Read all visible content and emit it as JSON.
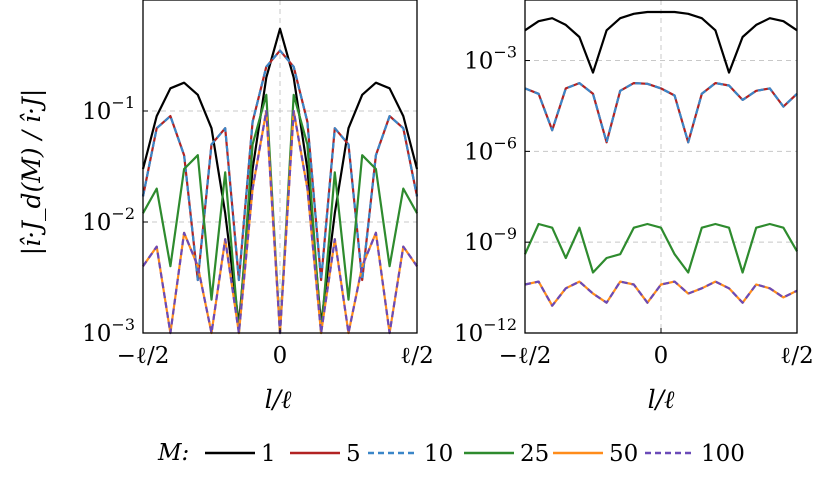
{
  "chart_data": [
    {
      "type": "line",
      "panel": "left",
      "xlabel": "l/ℓ",
      "ylabel": "|î·J_d(M) / î·J|",
      "y_scale": "log",
      "ylim": [
        0.001,
        1
      ],
      "xlim": [
        -0.5,
        0.5
      ],
      "x_ticks": [
        -0.5,
        0,
        0.5
      ],
      "x_tick_labels": [
        "−ℓ/2",
        "0",
        "ℓ/2"
      ],
      "y_ticks": [
        0.001,
        0.01,
        0.1
      ],
      "y_tick_labels": [
        {
          "base": "10",
          "exp": "−3"
        },
        {
          "base": "10",
          "exp": "−2"
        },
        {
          "base": "10",
          "exp": "−1"
        }
      ],
      "grid": true,
      "x": [
        -0.5,
        -0.45,
        -0.4,
        -0.35,
        -0.3,
        -0.25,
        -0.2,
        -0.15,
        -0.1,
        -0.05,
        0,
        0.05,
        0.1,
        0.15,
        0.2,
        0.25,
        0.3,
        0.35,
        0.4,
        0.45,
        0.5
      ],
      "series": [
        {
          "name": "1",
          "values": [
            0.03,
            0.09,
            0.16,
            0.18,
            0.14,
            0.07,
            0.012,
            0.0012,
            0.03,
            0.2,
            0.55,
            0.2,
            0.03,
            0.0012,
            0.012,
            0.07,
            0.14,
            0.18,
            0.16,
            0.09,
            0.03
          ]
        },
        {
          "name": "5",
          "values": [
            0.017,
            0.07,
            0.09,
            0.04,
            0.003,
            0.05,
            0.07,
            0.003,
            0.08,
            0.25,
            0.35,
            0.25,
            0.08,
            0.003,
            0.07,
            0.05,
            0.003,
            0.04,
            0.09,
            0.07,
            0.017
          ]
        },
        {
          "name": "10",
          "values": [
            0.017,
            0.07,
            0.09,
            0.04,
            0.003,
            0.05,
            0.07,
            0.003,
            0.08,
            0.25,
            0.35,
            0.25,
            0.08,
            0.003,
            0.07,
            0.05,
            0.003,
            0.04,
            0.09,
            0.07,
            0.017
          ]
        },
        {
          "name": "25",
          "values": [
            0.012,
            0.02,
            0.004,
            0.03,
            0.04,
            0.002,
            0.028,
            0.001,
            0.05,
            0.14,
            0.001,
            0.14,
            0.05,
            0.001,
            0.028,
            0.002,
            0.04,
            0.03,
            0.004,
            0.02,
            0.012
          ]
        },
        {
          "name": "50",
          "values": [
            0.004,
            0.006,
            0.001,
            0.008,
            0.004,
            0.001,
            0.007,
            0.001,
            0.02,
            0.1,
            0.001,
            0.1,
            0.02,
            0.001,
            0.007,
            0.001,
            0.004,
            0.008,
            0.001,
            0.006,
            0.004
          ]
        },
        {
          "name": "100",
          "values": [
            0.004,
            0.006,
            0.001,
            0.008,
            0.004,
            0.001,
            0.007,
            0.001,
            0.02,
            0.1,
            0.001,
            0.1,
            0.02,
            0.001,
            0.007,
            0.001,
            0.004,
            0.008,
            0.001,
            0.006,
            0.004
          ]
        }
      ]
    },
    {
      "type": "line",
      "panel": "right",
      "xlabel": "l/ℓ",
      "y_scale": "log",
      "ylim": [
        1e-12,
        0.1
      ],
      "xlim": [
        -0.5,
        0.5
      ],
      "x_ticks": [
        -0.5,
        0,
        0.5
      ],
      "x_tick_labels": [
        "−ℓ/2",
        "0",
        "ℓ/2"
      ],
      "y_ticks": [
        1e-12,
        1e-09,
        1e-06,
        0.001
      ],
      "y_tick_labels": [
        {
          "base": "10",
          "exp": "−12"
        },
        {
          "base": "10",
          "exp": "−9"
        },
        {
          "base": "10",
          "exp": "−6"
        },
        {
          "base": "10",
          "exp": "−3"
        }
      ],
      "grid": true,
      "x": [
        -0.5,
        -0.45,
        -0.4,
        -0.35,
        -0.3,
        -0.25,
        -0.2,
        -0.15,
        -0.1,
        -0.05,
        0,
        0.05,
        0.1,
        0.15,
        0.2,
        0.25,
        0.3,
        0.35,
        0.4,
        0.45,
        0.5
      ],
      "series": [
        {
          "name": "1",
          "values": [
            0.01,
            0.02,
            0.025,
            0.015,
            0.006,
            0.0004,
            0.01,
            0.025,
            0.035,
            0.04,
            0.04,
            0.04,
            0.035,
            0.025,
            0.01,
            0.0004,
            0.006,
            0.015,
            0.025,
            0.02,
            0.01
          ]
        },
        {
          "name": "5",
          "values": [
            0.00012,
            8e-05,
            5e-06,
            0.00012,
            0.00018,
            8e-05,
            2e-06,
            0.0001,
            0.00018,
            0.00017,
            0.00012,
            7e-05,
            2e-06,
            8e-05,
            0.00018,
            0.00015,
            5e-05,
            0.0001,
            0.00012,
            3e-05,
            8e-05
          ]
        },
        {
          "name": "10",
          "values": [
            0.00012,
            8e-05,
            5e-06,
            0.00012,
            0.00018,
            8e-05,
            2e-06,
            0.0001,
            0.00018,
            0.00017,
            0.00012,
            7e-05,
            2e-06,
            8e-05,
            0.00018,
            0.00015,
            5e-05,
            0.0001,
            0.00012,
            3e-05,
            8e-05
          ]
        },
        {
          "name": "25",
          "values": [
            4e-10,
            4e-09,
            3e-09,
            3e-10,
            3e-09,
            1e-10,
            3e-10,
            4e-10,
            3e-09,
            4e-09,
            3e-09,
            4e-10,
            1e-10,
            3e-09,
            4e-09,
            3e-09,
            1e-10,
            3e-09,
            4e-09,
            3e-09,
            5e-10
          ]
        },
        {
          "name": "50",
          "values": [
            4e-11,
            5e-11,
            8e-12,
            3e-11,
            5e-11,
            2e-11,
            1e-11,
            5e-11,
            4e-11,
            1e-11,
            4e-11,
            5e-11,
            2e-11,
            3e-11,
            5e-11,
            3e-11,
            1e-11,
            4e-11,
            3e-11,
            1.5e-11,
            2.5e-11
          ]
        },
        {
          "name": "100",
          "values": [
            4e-11,
            5e-11,
            8e-12,
            3e-11,
            5e-11,
            2e-11,
            1e-11,
            5e-11,
            4e-11,
            1e-11,
            4e-11,
            5e-11,
            2e-11,
            3e-11,
            5e-11,
            3e-11,
            1e-11,
            4e-11,
            3e-11,
            1.5e-11,
            2.5e-11
          ]
        }
      ]
    }
  ],
  "legend": {
    "title": "M:",
    "placement": "bottom",
    "items": [
      {
        "label": "1",
        "color": "#000000",
        "dash": "solid"
      },
      {
        "label": "5",
        "color": "#b22222",
        "dash": "solid"
      },
      {
        "label": "10",
        "color": "#3a86c8",
        "dash": "dashed"
      },
      {
        "label": "25",
        "color": "#2e8b2e",
        "dash": "solid"
      },
      {
        "label": "50",
        "color": "#ff8c1a",
        "dash": "solid"
      },
      {
        "label": "100",
        "color": "#6a4ab8",
        "dash": "dashed"
      }
    ]
  }
}
